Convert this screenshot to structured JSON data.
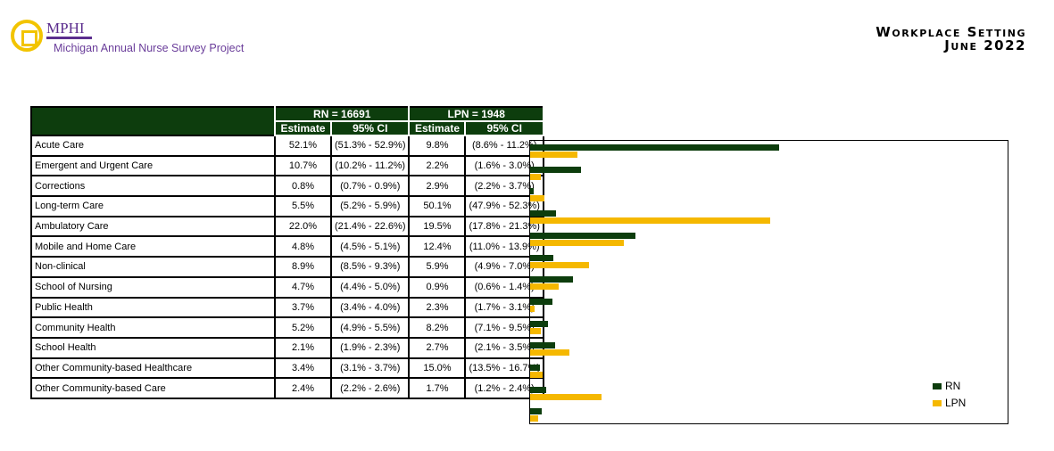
{
  "header": {
    "org": "MPHI",
    "project": "Michigan Annual Nurse Survey Project",
    "title_line1": "Workplace Setting",
    "title_line2": "June 2022"
  },
  "table": {
    "rn_header": "RN = 16691",
    "lpn_header": "LPN = 1948",
    "sub_headers": [
      "Estimate",
      "95% CI",
      "Estimate",
      "95% CI"
    ]
  },
  "colors": {
    "RN": "#0d3d0d",
    "LPN": "#f5b800"
  },
  "chart_data": {
    "type": "bar",
    "orientation": "horizontal",
    "xlim": [
      0,
      100
    ],
    "categories": [
      "Acute Care",
      "Emergent and Urgent Care",
      "Corrections",
      "Long-term Care",
      "Ambulatory Care",
      "Mobile and Home Care",
      "Non-clinical",
      "School of Nursing",
      "Public Health",
      "Community Health",
      "School Health",
      "Other Community-based Healthcare",
      "Other Community-based Care"
    ],
    "series": [
      {
        "name": "RN",
        "values": [
          52.1,
          10.7,
          0.8,
          5.5,
          22.0,
          4.8,
          8.9,
          4.7,
          3.7,
          5.2,
          2.1,
          3.4,
          2.4
        ],
        "labels": [
          "52.1%",
          "10.7%",
          "0.8%",
          "5.5%",
          "22.0%",
          "4.8%",
          "8.9%",
          "4.7%",
          "3.7%",
          "5.2%",
          "2.1%",
          "3.4%",
          "2.4%"
        ],
        "ci": [
          "(51.3% - 52.9%)",
          "(10.2% - 11.2%)",
          "(0.7% - 0.9%)",
          "(5.2% - 5.9%)",
          "(21.4% - 22.6%)",
          "(4.5% - 5.1%)",
          "(8.5% - 9.3%)",
          "(4.4% - 5.0%)",
          "(3.4% - 4.0%)",
          "(4.9% - 5.5%)",
          "(1.9% - 2.3%)",
          "(3.1% - 3.7%)",
          "(2.2% - 2.6%)"
        ]
      },
      {
        "name": "LPN",
        "values": [
          9.8,
          2.2,
          2.9,
          50.1,
          19.5,
          12.4,
          5.9,
          0.9,
          2.3,
          8.2,
          2.7,
          15.0,
          1.7
        ],
        "labels": [
          "9.8%",
          "2.2%",
          "2.9%",
          "50.1%",
          "19.5%",
          "12.4%",
          "5.9%",
          "0.9%",
          "2.3%",
          "8.2%",
          "2.7%",
          "15.0%",
          "1.7%"
        ],
        "ci": [
          "(8.6% - 11.2%)",
          "(1.6% - 3.0%)",
          "(2.2% - 3.7%)",
          "(47.9% - 52.3%)",
          "(17.8% - 21.3%)",
          "(11.0% - 13.9%)",
          "(4.9% - 7.0%)",
          "(0.6% - 1.4%)",
          "(1.7% - 3.1%)",
          "(7.1% - 9.5%)",
          "(2.1% - 3.5%)",
          "(13.5% - 16.7%)",
          "(1.2% - 2.4%)"
        ]
      }
    ],
    "legend": {
      "placement": "bottom-right",
      "entries": [
        "RN",
        "LPN"
      ]
    }
  }
}
